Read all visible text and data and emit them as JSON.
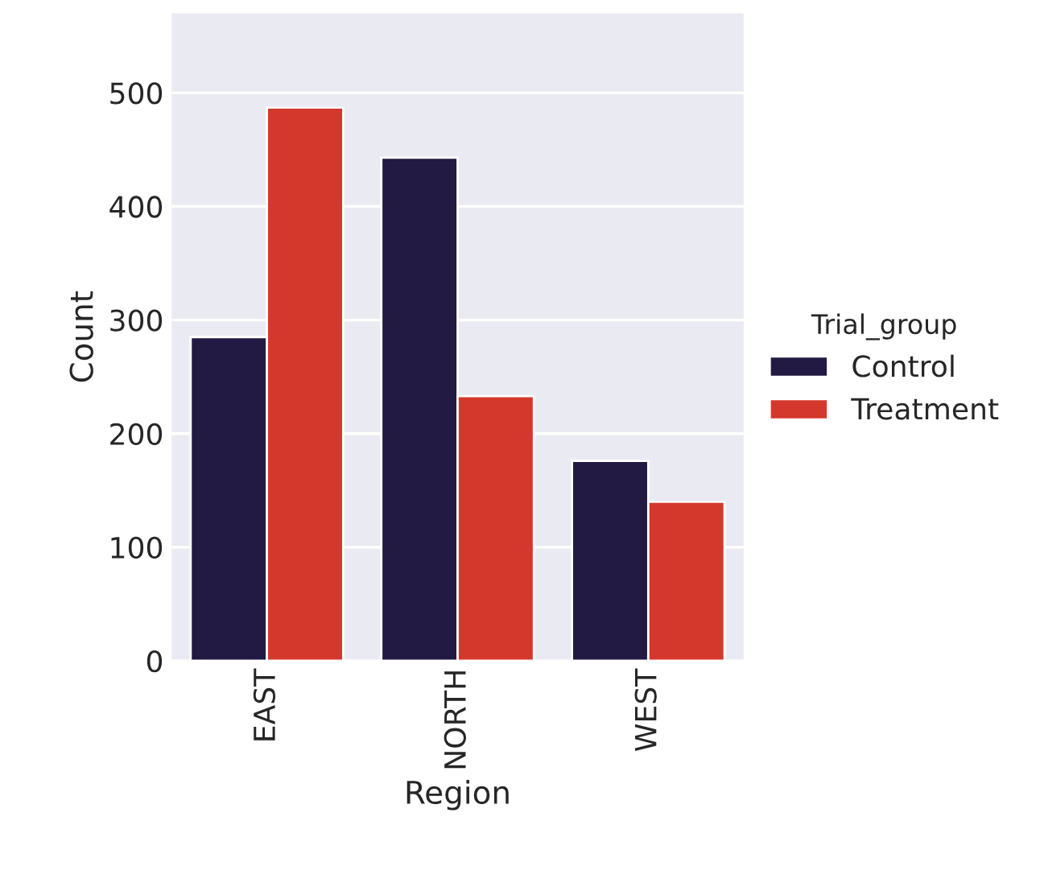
{
  "chart_data": {
    "type": "bar",
    "xlabel": "Region",
    "ylabel": "Count",
    "legend_title": "Trial_group",
    "categories": [
      "EAST",
      "NORTH",
      "WEST"
    ],
    "series": [
      {
        "name": "Control",
        "color": "#221a42",
        "values": [
          285,
          443,
          176
        ]
      },
      {
        "name": "Treatment",
        "color": "#d4382c",
        "values": [
          487,
          233,
          140
        ]
      }
    ],
    "ylim": [
      0,
      570
    ],
    "yticks": [
      0,
      100,
      200,
      300,
      400,
      500
    ],
    "grid": "y",
    "legend": "right"
  }
}
